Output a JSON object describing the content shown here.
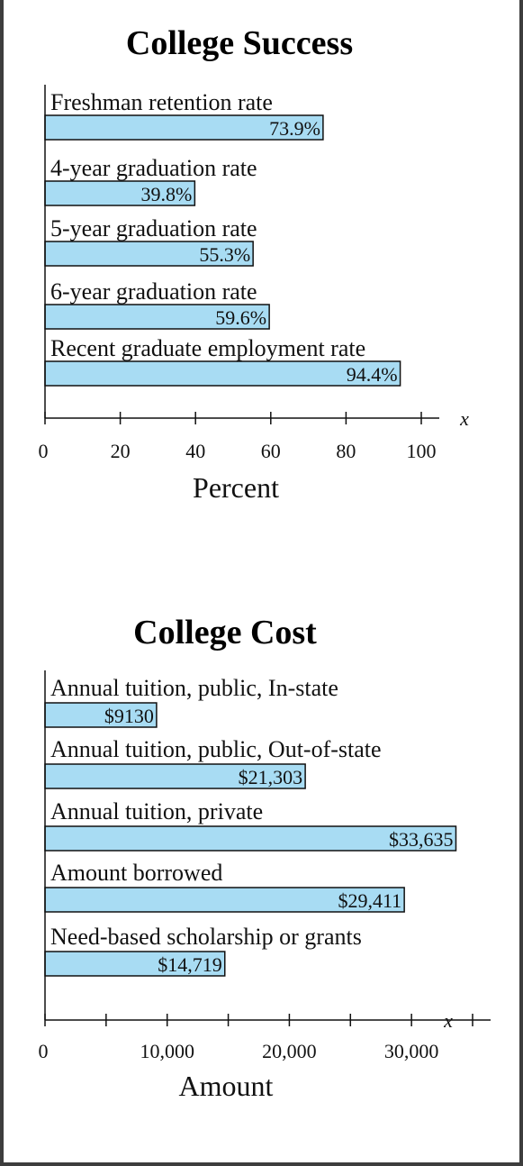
{
  "chart_data": [
    {
      "type": "bar",
      "orientation": "horizontal",
      "title": "College Success",
      "categories": [
        "Freshman retention rate",
        "4-year graduation rate",
        "5-year graduation rate",
        "6-year graduation rate",
        "Recent graduate employment rate"
      ],
      "values": [
        73.9,
        39.8,
        55.3,
        59.6,
        94.4
      ],
      "value_labels": [
        "73.9%",
        "39.8%",
        "55.3%",
        "59.6%",
        "94.4%"
      ],
      "xlabel": "Percent",
      "axis_var": "x",
      "xlim": [
        0,
        100
      ],
      "xticks": [
        0,
        20,
        40,
        60,
        80,
        100
      ],
      "xtick_labels": [
        "0",
        "20",
        "40",
        "60",
        "80",
        "100"
      ],
      "bar_color": "#a8dcf3"
    },
    {
      "type": "bar",
      "orientation": "horizontal",
      "title": "College Cost",
      "categories": [
        "Annual tuition, public, In-state",
        "Annual tuition, public, Out-of-state",
        "Annual tuition, private",
        "Amount borrowed",
        "Need-based scholarship or grants"
      ],
      "values": [
        9130,
        21303,
        33635,
        29411,
        14719
      ],
      "value_labels": [
        "$9130",
        "$21,303",
        "$33,635",
        "$29,411",
        "$14,719"
      ],
      "xlabel": "Amount",
      "axis_var": "x",
      "xlim": [
        0,
        35000
      ],
      "xticks": [
        0,
        5000,
        10000,
        15000,
        20000,
        25000,
        30000,
        35000
      ],
      "xtick_labels": [
        "0",
        "",
        "10,000",
        "",
        "20,000",
        "",
        "30,000",
        ""
      ],
      "bar_color": "#a8dcf3"
    }
  ]
}
